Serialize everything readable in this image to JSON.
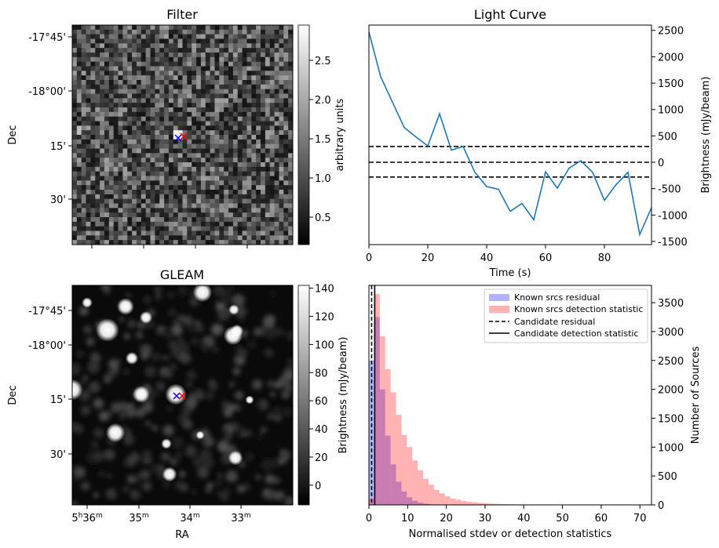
{
  "chart_data": [
    {
      "type": "heatmap",
      "title": "Filter",
      "ylabel": "Dec",
      "yticks": [
        "-17°45'",
        "-18°00'",
        "15'",
        "30'"
      ],
      "colorbar": {
        "label": "arbitrary units",
        "range": [
          0.15,
          2.95
        ],
        "ticks": [
          "0.5",
          "1.0",
          "1.5",
          "2.0",
          "2.5"
        ],
        "tick_values": [
          0.5,
          1.0,
          1.5,
          2.0,
          2.5
        ]
      },
      "colormap": "gray",
      "markers": [
        {
          "symbol": "x",
          "color": "#0000ff"
        },
        {
          "symbol": "x",
          "color": "#ff0000"
        }
      ]
    },
    {
      "type": "line",
      "title": "Light Curve",
      "xlabel": "Time (s)",
      "ylabel": "Brightness (mJy/beam)",
      "xlim": [
        0,
        96
      ],
      "ylim": [
        -1560,
        2600
      ],
      "xticks": [
        0,
        20,
        40,
        60,
        80
      ],
      "yticks": [
        -1500,
        -1000,
        -500,
        0,
        500,
        1000,
        1500,
        2000,
        2500
      ],
      "x": [
        0,
        4,
        8,
        12,
        16,
        20,
        24,
        28,
        32,
        36,
        40,
        44,
        48,
        52,
        56,
        60,
        64,
        68,
        72,
        76,
        80,
        84,
        88,
        92,
        96
      ],
      "y": [
        2470,
        1620,
        1140,
        660,
        480,
        310,
        920,
        230,
        300,
        -190,
        -460,
        -510,
        -930,
        -780,
        -1090,
        -180,
        -490,
        -110,
        30,
        -190,
        -720,
        -420,
        -190,
        -1370,
        -860
      ],
      "hlines": [
        300,
        0,
        -280
      ],
      "line_color": "#1f77b4"
    },
    {
      "type": "heatmap",
      "title": "GLEAM",
      "xlabel": "RA",
      "ylabel": "Dec",
      "xticks": [
        "5h36m",
        "35m",
        "34m",
        "33m"
      ],
      "yticks": [
        "-17°45'",
        "-18°00'",
        "15'",
        "30'"
      ],
      "colorbar": {
        "label": "Brightness (mJy/beam)",
        "range": [
          -14,
          142
        ],
        "ticks": [
          "0",
          "20",
          "40",
          "60",
          "80",
          "100",
          "120",
          "140"
        ],
        "tick_values": [
          0,
          20,
          40,
          60,
          80,
          100,
          120,
          140
        ]
      },
      "colormap": "gray",
      "markers": [
        {
          "symbol": "x",
          "color": "#0000ff"
        },
        {
          "symbol": "x",
          "color": "#ff0000"
        }
      ]
    },
    {
      "type": "bar",
      "xlabel": "Normalised stdev or detection statistics",
      "ylabel": "Number of Sources",
      "xlim": [
        0,
        73
      ],
      "ylim": [
        0,
        3800
      ],
      "xticks": [
        0,
        10,
        20,
        30,
        40,
        50,
        60,
        70
      ],
      "yticks": [
        0,
        500,
        1000,
        1500,
        2000,
        2500,
        3000,
        3500
      ],
      "bin_width": 1.4,
      "series": [
        {
          "name": "Known srcs residual",
          "color": "#0000ff",
          "alpha": 0.3,
          "values": [
            2500,
            3250,
            2000,
            1200,
            700,
            400,
            230,
            130,
            70,
            40,
            20,
            10,
            5
          ]
        },
        {
          "name": "Known srcs detection statistic",
          "color": "#ff0000",
          "alpha": 0.3,
          "values": [
            100,
            3650,
            2920,
            2350,
            1950,
            1560,
            1210,
            1000,
            770,
            600,
            450,
            350,
            260,
            200,
            150,
            110,
            90,
            70,
            55,
            45,
            35,
            28,
            22,
            18,
            15,
            12,
            10,
            8,
            7,
            6,
            5,
            5,
            4,
            4,
            3,
            3,
            3,
            2,
            2,
            2,
            2,
            2,
            2,
            1,
            1,
            1,
            1,
            1,
            1,
            1
          ]
        }
      ],
      "vlines": [
        {
          "name": "Candidate residual",
          "x": 0.7,
          "style": "dashed"
        },
        {
          "name": "Candidate detection statistic",
          "x": 1.5,
          "style": "solid"
        }
      ],
      "legend_placement": "top-right"
    }
  ]
}
